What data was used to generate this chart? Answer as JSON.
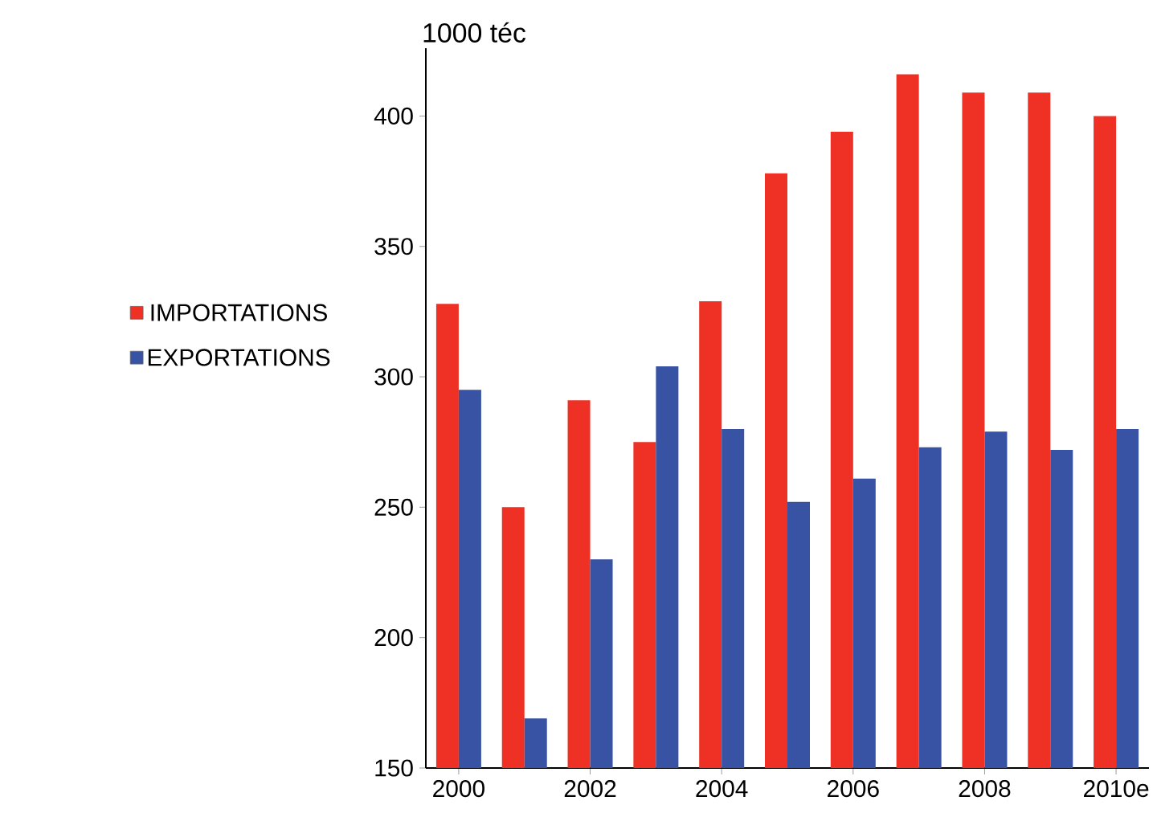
{
  "chart_data": {
    "type": "bar",
    "ylabel": "1000 téc",
    "categories": [
      "2000",
      null,
      "2002",
      null,
      "2004",
      null,
      "2006",
      null,
      "2008",
      null,
      "2010e"
    ],
    "series": [
      {
        "name": "IMPORTATIONS",
        "color": "#ee3124",
        "values": [
          328,
          250,
          291,
          275,
          329,
          378,
          394,
          416,
          409,
          409,
          400
        ]
      },
      {
        "name": "EXPORTATIONS",
        "color": "#3953a4",
        "values": [
          295,
          169,
          230,
          304,
          280,
          252,
          261,
          273,
          279,
          272,
          280
        ]
      }
    ],
    "ylim": [
      150,
      426
    ],
    "yticks": [
      150,
      200,
      250,
      300,
      350,
      400
    ],
    "grid": false,
    "legend": "left"
  }
}
